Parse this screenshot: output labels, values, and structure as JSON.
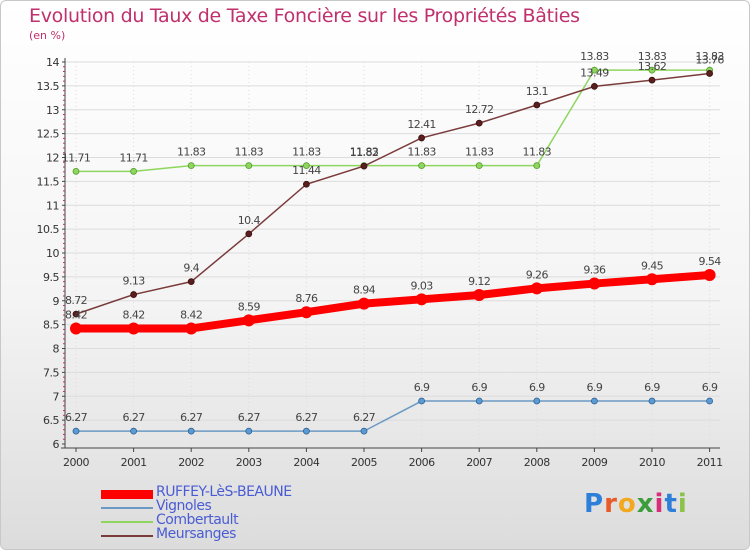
{
  "header": {
    "title": "Evolution du Taux de Taxe Foncière sur les Propriétés Bâties",
    "unit": "(en %)"
  },
  "branding": {
    "logo_text": "Proxiti",
    "letters": [
      "P",
      "r",
      "o",
      "x",
      "i",
      "t",
      "i"
    ],
    "letter_colors": [
      "#2e7fd9",
      "#e85a2a",
      "#f2a91f",
      "#3b9e3b",
      "#d62f7a",
      "#2e7fd9",
      "#8bc34a"
    ]
  },
  "chart_data": {
    "type": "line",
    "title": "Evolution du Taux de Taxe Foncière sur les Propriétés Bâties",
    "ylabel": "(en %)",
    "xlabel": "",
    "x": [
      2000,
      2001,
      2002,
      2003,
      2004,
      2005,
      2006,
      2007,
      2008,
      2009,
      2010,
      2011
    ],
    "ylim": [
      6,
      14
    ],
    "yticks": [
      6,
      6.5,
      7,
      7.5,
      8,
      8.5,
      9,
      9.5,
      10,
      10.5,
      11,
      11.5,
      12,
      12.5,
      13,
      13.5,
      14
    ],
    "ytick_labels": [
      "6",
      "6.5",
      "7",
      "7.5",
      "8",
      "8.5",
      "9",
      "9.5",
      "10",
      "10.5",
      "11",
      "11.5",
      "12",
      "12.5",
      "13",
      "13.5",
      "14"
    ],
    "legend_position": "bottom-left",
    "series": [
      {
        "name": "RUFFEY-LèS-BEAUNE",
        "color": "#ff0000",
        "text_color": "#4a5cd4",
        "values": [
          8.42,
          8.42,
          8.42,
          8.59,
          8.76,
          8.94,
          9.03,
          9.12,
          9.26,
          9.36,
          9.45,
          9.54
        ],
        "labels": [
          "8.42",
          "8.42",
          "8.42",
          "8.59",
          "8.76",
          "8.94",
          "9.03",
          "9.12",
          "9.26",
          "9.36",
          "9.45",
          "9.54"
        ]
      },
      {
        "name": "Vignoles",
        "color": "#6c9ac4",
        "text_color": "#4a5cd4",
        "values": [
          6.27,
          6.27,
          6.27,
          6.27,
          6.27,
          6.27,
          6.9,
          6.9,
          6.9,
          6.9,
          6.9,
          6.9
        ],
        "labels": [
          "6.27",
          "6.27",
          "6.27",
          "6.27",
          "6.27",
          "6.27",
          "6.9",
          "6.9",
          "6.9",
          "6.9",
          "6.9",
          "6.9"
        ]
      },
      {
        "name": "Combertault",
        "color": "#8ed65e",
        "text_color": "#4a5cd4",
        "values": [
          11.71,
          11.71,
          11.83,
          11.83,
          11.83,
          11.83,
          11.83,
          11.83,
          11.83,
          13.83,
          13.83,
          13.83
        ],
        "labels": [
          "11.71",
          "11.71",
          "11.83",
          "11.83",
          "11.83",
          "11.83",
          "11.83",
          "11.83",
          "11.83",
          "13.83",
          "13.83",
          "13.83"
        ]
      },
      {
        "name": "Meursanges",
        "color": "#7a3b3b",
        "text_color": "#4a5cd4",
        "values": [
          8.72,
          9.13,
          9.4,
          10.4,
          11.44,
          11.82,
          12.41,
          12.72,
          13.1,
          13.49,
          13.62,
          13.76
        ],
        "labels": [
          "8.72",
          "9.13",
          "9.4",
          "10.4",
          "11.44",
          "11.82",
          "12.41",
          "12.72",
          "13.1",
          "13.49",
          "13.62",
          "13.76"
        ]
      }
    ]
  }
}
